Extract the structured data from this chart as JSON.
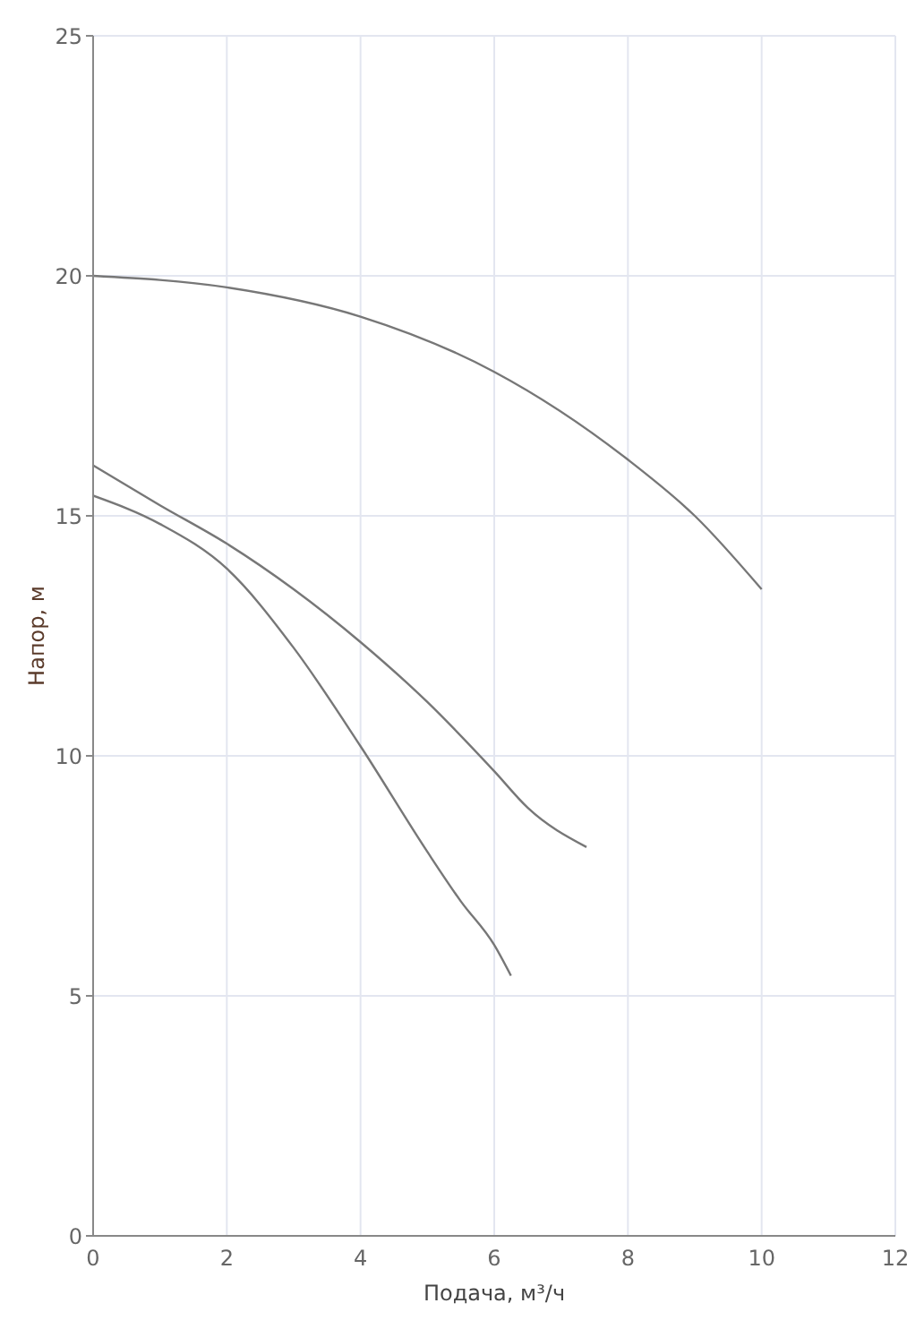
{
  "chart_data": {
    "type": "line",
    "xlabel": "Подача, м³/ч",
    "ylabel": "Напор, м",
    "xlim": [
      0,
      12
    ],
    "xticks": [
      0,
      2,
      4,
      6,
      8,
      10,
      12
    ],
    "ylim": [
      0,
      25
    ],
    "yticks": [
      0,
      5,
      10,
      15,
      20,
      25
    ],
    "grid": true,
    "marker": "none",
    "line_style": "solid",
    "series": [
      {
        "color": "#777777",
        "x": [
          0,
          2,
          4,
          6,
          8,
          9,
          10
        ],
        "values": [
          20.0,
          19.76,
          19.15,
          18.0,
          16.17,
          15.0,
          13.47
        ]
      },
      {
        "color": "#777777",
        "x": [
          0,
          1,
          2,
          3,
          4,
          5,
          6,
          6.5,
          7.38
        ],
        "values": [
          16.05,
          15.22,
          14.42,
          13.47,
          12.37,
          11.12,
          9.68,
          8.92,
          8.1
        ]
      },
      {
        "color": "#777777",
        "x": [
          0,
          1,
          2,
          3,
          4,
          5,
          5.5,
          6,
          6.25
        ],
        "values": [
          15.42,
          14.83,
          13.9,
          12.25,
          10.2,
          8.0,
          6.97,
          6.06,
          5.42
        ]
      }
    ]
  }
}
